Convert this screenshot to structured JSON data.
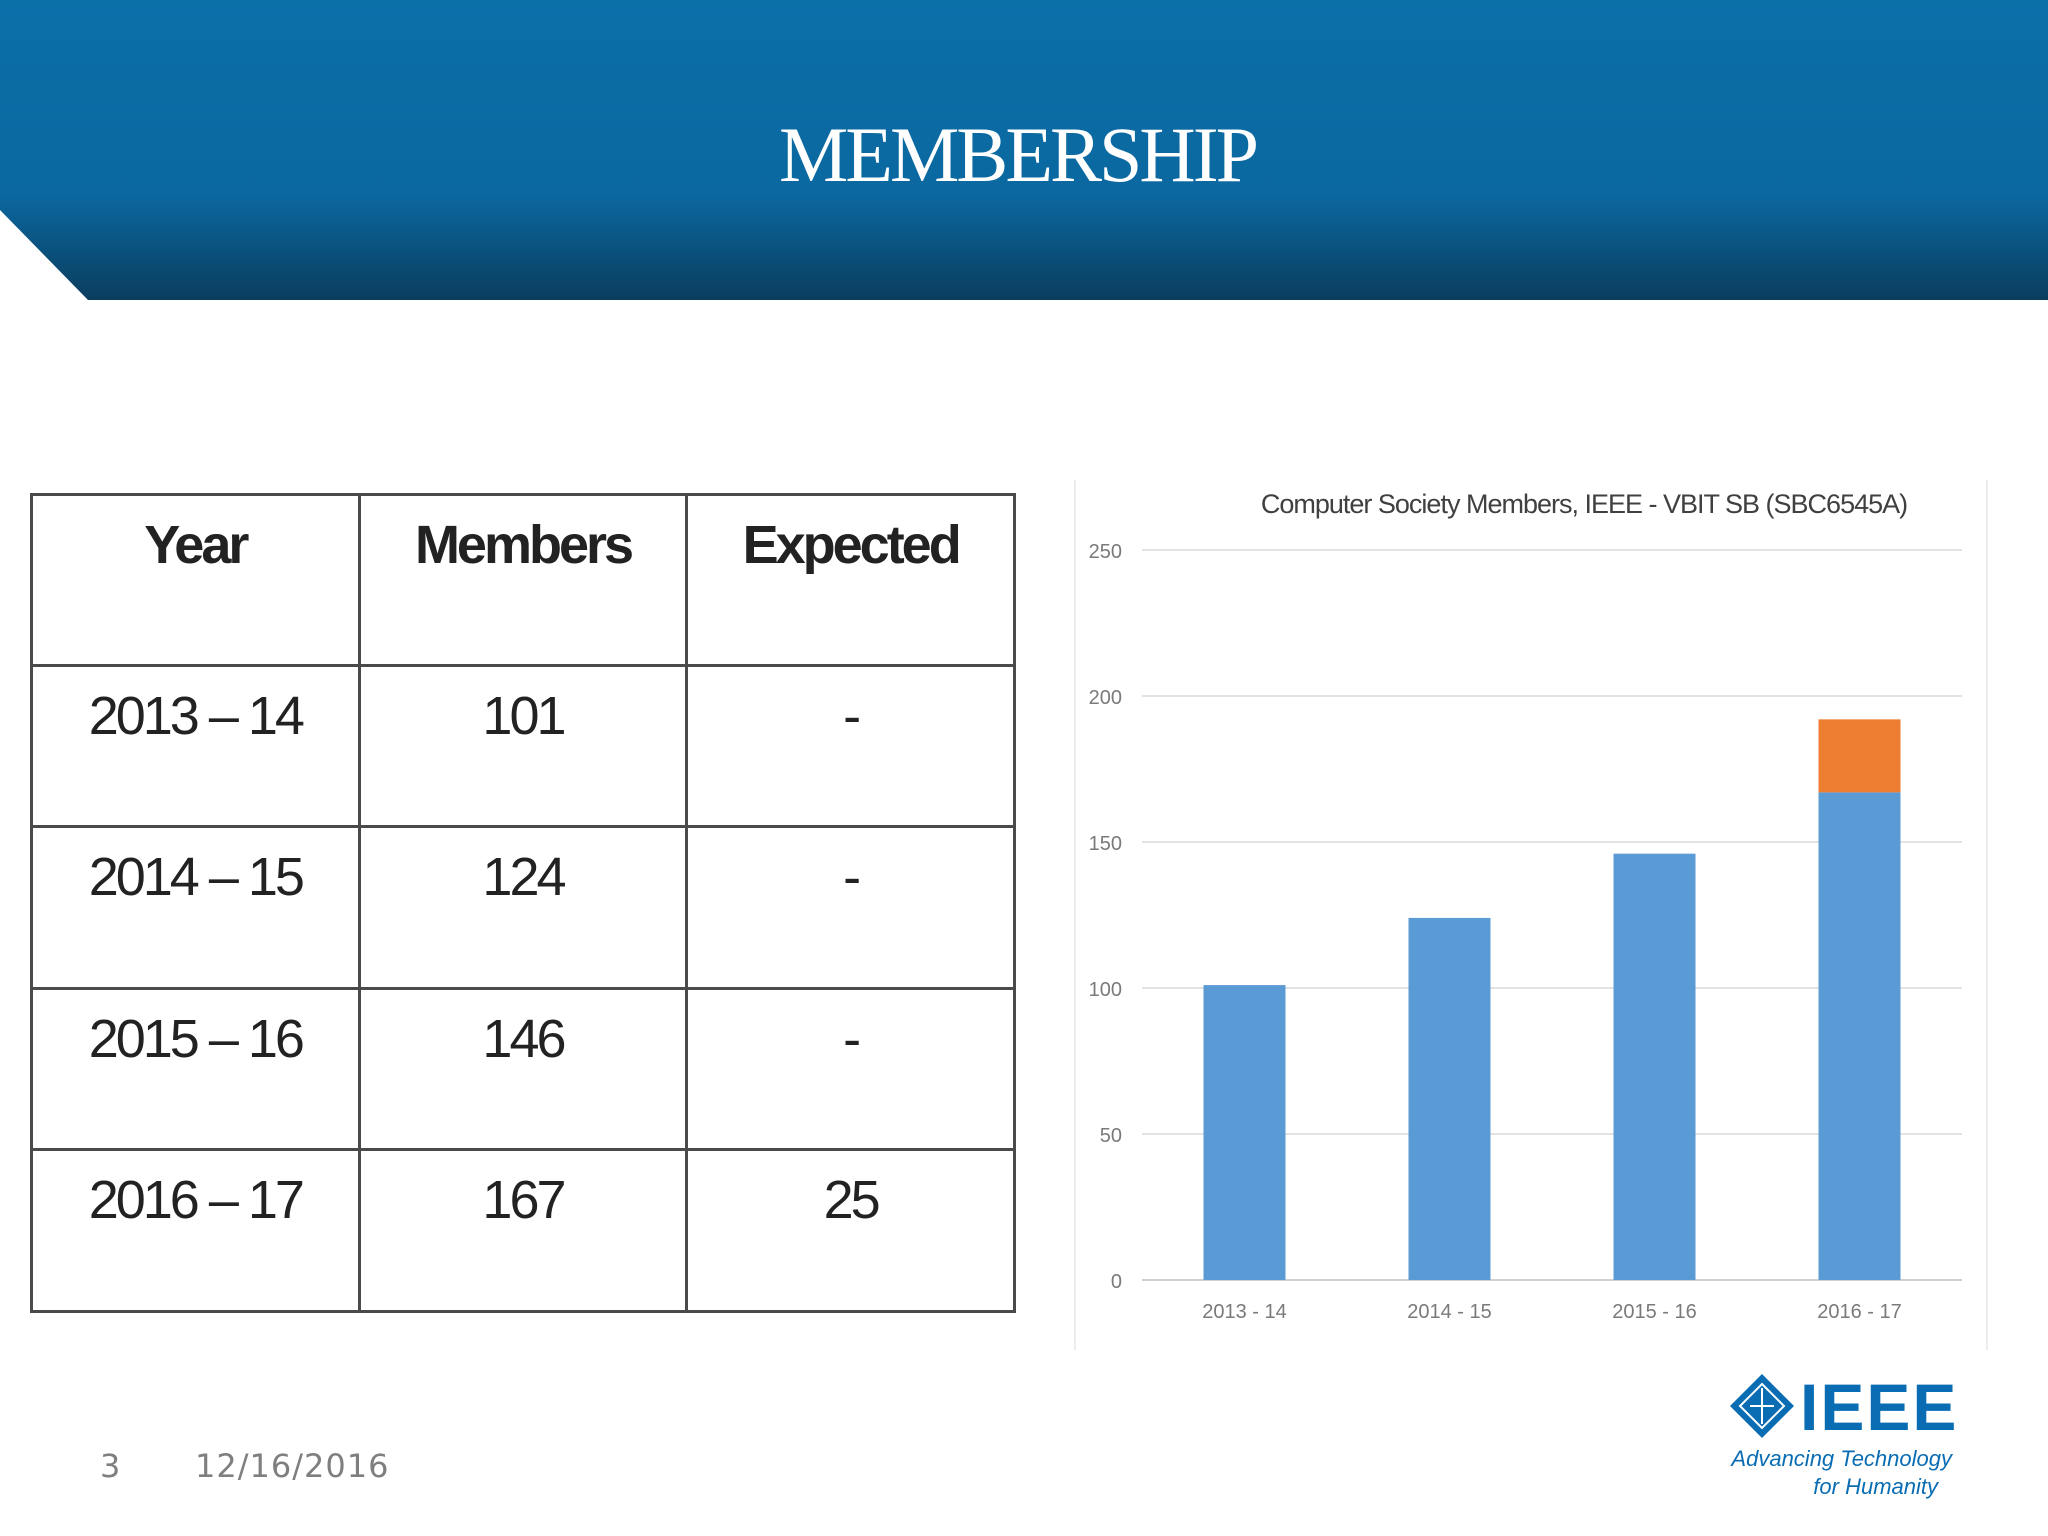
{
  "slide": {
    "title": "MEMBERSHIP",
    "page_number": "3",
    "date": "12/16/2016"
  },
  "colors": {
    "header_blue": "#0b6fa8",
    "header_dark": "#0a3d5e",
    "bar_blue": "#5b9bd5",
    "bar_orange": "#ed7d31",
    "logo_blue": "#0a6db3"
  },
  "table": {
    "headers": [
      "Year",
      "Members",
      "Expected"
    ],
    "rows": [
      [
        "2013 – 14",
        "101",
        "-"
      ],
      [
        "2014 – 15",
        "124",
        "-"
      ],
      [
        "2015 – 16",
        "146",
        "-"
      ],
      [
        "2016 – 17",
        "167",
        "25"
      ]
    ]
  },
  "chart_data": {
    "type": "bar",
    "stacked": true,
    "title": "Computer Society Members, IEEE - VBIT SB (SBC6545A)",
    "categories": [
      "2013 - 14",
      "2014 - 15",
      "2015 - 16",
      "2016 - 17"
    ],
    "series": [
      {
        "values": [
          101,
          124,
          146,
          167
        ],
        "color": "#5b9bd5"
      },
      {
        "values": [
          0,
          0,
          0,
          25
        ],
        "color": "#ed7d31"
      }
    ],
    "ylim": [
      0,
      250
    ],
    "yticks": [
      0,
      50,
      100,
      150,
      200,
      250
    ],
    "grid": true,
    "legend": "none",
    "xlabel": "",
    "ylabel": ""
  },
  "logo": {
    "name": "IEEE",
    "tagline_line1": "Advancing Technology",
    "tagline_line2": "for Humanity"
  }
}
